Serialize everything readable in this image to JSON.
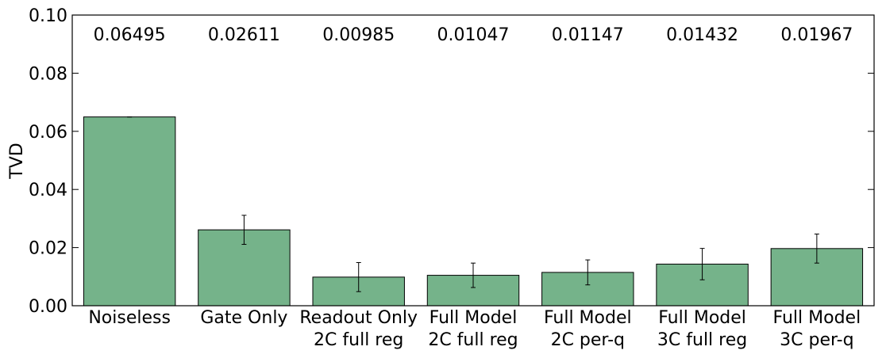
{
  "chart_data": {
    "type": "bar",
    "title": "",
    "xlabel": "",
    "ylabel": "TVD",
    "ylim": [
      0,
      0.1
    ],
    "yticks": [
      "0.00",
      "0.02",
      "0.04",
      "0.06",
      "0.08",
      "0.10"
    ],
    "grid": false,
    "categories": [
      [
        "Noiseless"
      ],
      [
        "Gate Only"
      ],
      [
        "Readout Only",
        "2C full reg"
      ],
      [
        "Full Model",
        "2C full reg"
      ],
      [
        "Full Model",
        "2C per-q"
      ],
      [
        "Full Model",
        "3C full reg"
      ],
      [
        "Full Model",
        "3C per-q"
      ]
    ],
    "values": [
      0.06495,
      0.02611,
      0.00985,
      0.01047,
      0.01147,
      0.01432,
      0.01967
    ],
    "value_labels": [
      "0.06495",
      "0.02611",
      "0.00985",
      "0.01047",
      "0.01147",
      "0.01432",
      "0.01967"
    ],
    "errors": [
      0.0,
      0.005,
      0.005,
      0.0042,
      0.0043,
      0.0054,
      0.005
    ],
    "bar_color": "#75b38a",
    "bar_edge_color": "#000000"
  }
}
